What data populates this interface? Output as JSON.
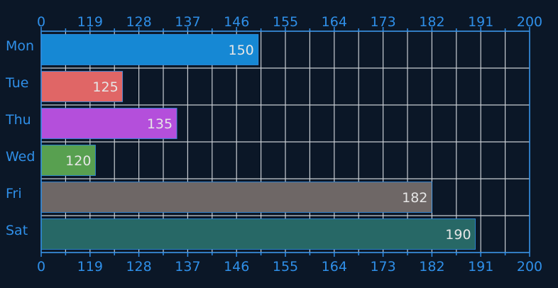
{
  "chart_data": {
    "type": "bar",
    "orientation": "horizontal",
    "categories": [
      "Mon",
      "Tue",
      "Thu",
      "Wed",
      "Fri",
      "Sat"
    ],
    "values": [
      150,
      125,
      135,
      120,
      182,
      190
    ],
    "colors": [
      "#1688d4",
      "#e06666",
      "#b44fdb",
      "#58a050",
      "#6e6766",
      "#276866"
    ],
    "xticks": [
      "0",
      "119",
      "128",
      "137",
      "146",
      "155",
      "164",
      "173",
      "182",
      "191",
      "200"
    ],
    "grid": true,
    "axis_color": "#2f8fe8",
    "bar_label_color": "#e6e6e6",
    "background": "#0b1727"
  }
}
